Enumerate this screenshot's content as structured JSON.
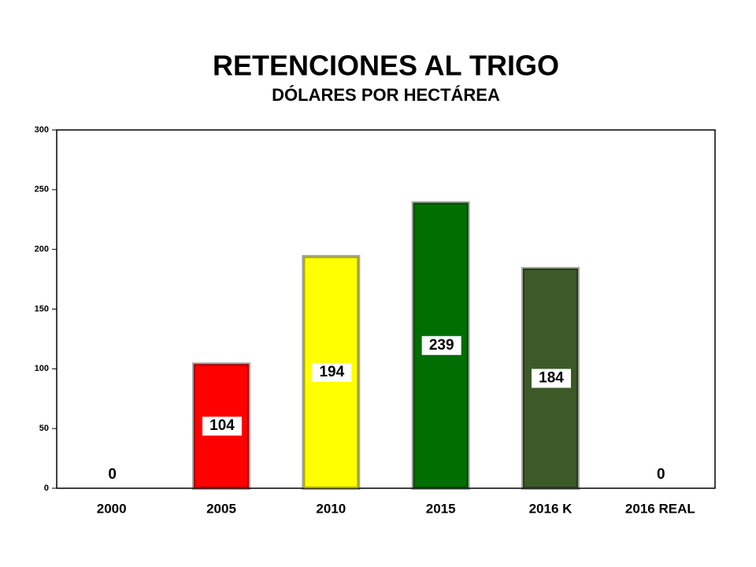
{
  "chart_data": {
    "type": "bar",
    "title": "RETENCIONES AL TRIGO",
    "subtitle": "DÓLARES POR HECTÁREA",
    "categories": [
      "2000",
      "2005",
      "2010",
      "2015",
      "2016 K",
      "2016 REAL"
    ],
    "values": [
      0,
      104,
      194,
      239,
      184,
      0
    ],
    "colors": [
      null,
      "#ff0000",
      "#ffff00",
      "#006e00",
      "#3b5a27",
      null
    ],
    "ylim": [
      0,
      300
    ],
    "yticks": [
      0,
      50,
      100,
      150,
      200,
      250,
      300
    ]
  }
}
